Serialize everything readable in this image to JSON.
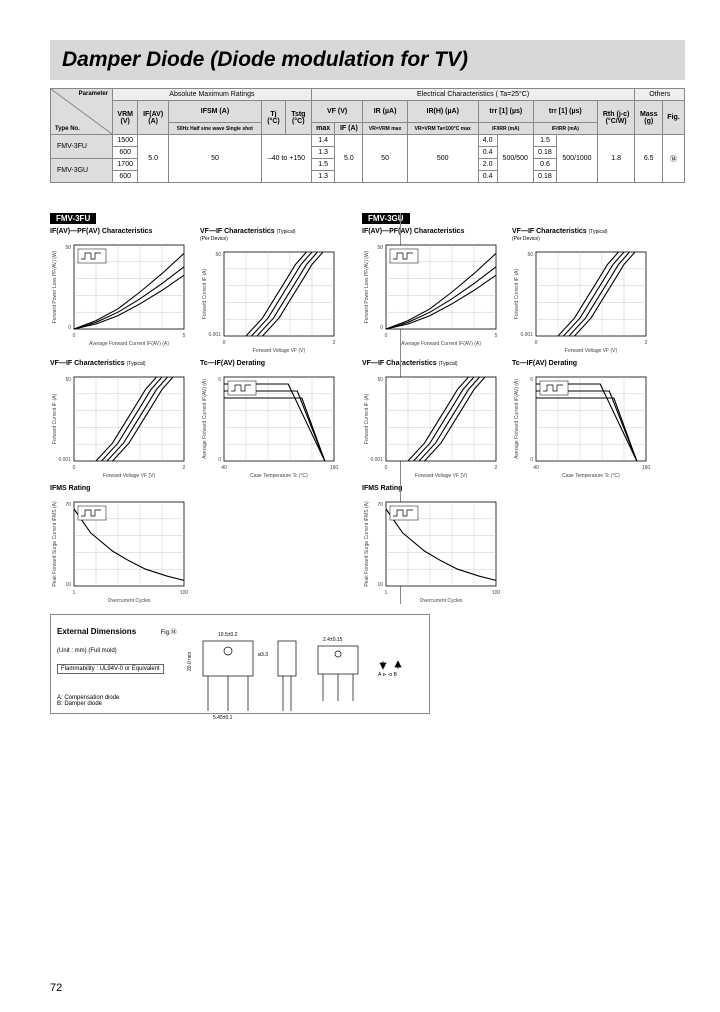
{
  "title": "Damper Diode (Diode modulation for TV)",
  "page_number": "72",
  "table": {
    "groups": [
      "Absolute Maximum Ratings",
      "Electrical Characteristics ( Ta=25°C)",
      "Others"
    ],
    "param_label": "Parameter",
    "type_label": "Type No.",
    "cols": [
      {
        "h1": "VRM",
        "h2": "(V)"
      },
      {
        "h1": "IF(AV)",
        "h2": "(A)"
      },
      {
        "h1": "IFSM\n(A)",
        "h2": "50Hz\nHalf sine wave\nSingle shot"
      },
      {
        "h1": "Tj",
        "h2": "(°C)"
      },
      {
        "h1": "Tstg",
        "h2": "(°C)"
      },
      {
        "h1": "VF\n(V)",
        "h2": "max",
        "h3": "IF\n(A)"
      },
      {
        "h1": "IR\n(µA)",
        "h2": "VR=VRM\nmax"
      },
      {
        "h1": "IR(H)\n(µA)",
        "h2": "VR=VRM\nTa=100°C max"
      },
      {
        "h1": "trr [1]\n(µs)",
        "h2": "IF/IRR\n(mA)"
      },
      {
        "h1": "trr [1]\n(µs)",
        "h2": "IF/IRR\n(mA)"
      },
      {
        "h1": "Rth (j-c)",
        "h2": "(°C/W)"
      },
      {
        "h1": "Mass",
        "h2": "(g)"
      },
      {
        "h1": "Fig."
      }
    ],
    "rows": [
      {
        "type": "FMV-3FU",
        "vrm": "1500",
        "vf": "1.4",
        "trr1": "4.0",
        "trr2": "1.5"
      },
      {
        "type": "",
        "vrm": "600",
        "vf": "1.3",
        "trr1": "0.4",
        "trr2": "0.18"
      },
      {
        "type": "FMV-3GU",
        "vrm": "1700",
        "vf": "1.5",
        "trr1": "2.0",
        "trr2": "0.6"
      },
      {
        "type": "",
        "vrm": "600",
        "vf": "1.3",
        "trr1": "0.4",
        "trr2": "0.18"
      }
    ],
    "shared": {
      "ifav": "5.0",
      "ifsm": "50",
      "tj_tstg": "–40 to +150",
      "if_a": "5.0",
      "ir": "50",
      "irh": "500",
      "ratio1": "500/500",
      "ratio2": "500/1000",
      "rth": "1.8",
      "mass": "6.5",
      "fig": "⑭"
    }
  },
  "sections": [
    {
      "label": "FMV-3FU"
    },
    {
      "label": "FMV-3GU"
    }
  ],
  "charts": {
    "titles": {
      "ifav_pfav": "IF(AV)—PF(AV) Characteristics",
      "vf_if": "VF—IF Characteristics",
      "vf_if_typ": "(Typical)",
      "tc_derating": "Tc—IF(AV) Derating",
      "ifms": "IFMS Rating",
      "per_device": "(Per Device)"
    },
    "axis": {
      "avg_fwd_current": "Average Forward Current IF(AV) (A)",
      "fwd_power_loss": "Forward Power Loss PF(AV) (W)",
      "fwd_voltage": "Forward Voltage VF (V)",
      "fwd_current": "Forward Current IF (A)",
      "case_temp": "Case Temperature Tc (°C)",
      "overcurrent": "Overcurrent Cycles",
      "peak_surge": "Peak Forward Surge Current IFMS (A)"
    },
    "annotations": {
      "dth": [
        "D/T=1/3",
        "D/T=1/5",
        "D/T=1/2"
      ],
      "temps": [
        "Tj=150°C",
        "100°C",
        "50°C",
        "25°C"
      ],
      "pulse": "Half sine wave 2ms",
      "not_exceed": "Not exceed the max ratings"
    },
    "colors": {
      "grid": "#bbbbbb",
      "axis": "#000000",
      "curve": "#000000",
      "bg": "#ffffff"
    },
    "data": {
      "ifav_pfav": {
        "xrange": [
          0,
          5
        ],
        "yrange": [
          0,
          50
        ],
        "curves": [
          [
            [
              0,
              0
            ],
            [
              1,
              5
            ],
            [
              2,
              12
            ],
            [
              3,
              22
            ],
            [
              4,
              33
            ],
            [
              5,
              45
            ]
          ],
          [
            [
              0,
              0
            ],
            [
              1,
              4
            ],
            [
              2,
              10
            ],
            [
              3,
              18
            ],
            [
              4,
              27
            ],
            [
              5,
              37
            ]
          ],
          [
            [
              0,
              0
            ],
            [
              1,
              3
            ],
            [
              2,
              8
            ],
            [
              3,
              15
            ],
            [
              4,
              23
            ],
            [
              5,
              32
            ]
          ]
        ]
      },
      "vf_if_log": {
        "xrange": [
          0,
          2.0
        ],
        "ylog": [
          0.001,
          50
        ],
        "curves": [
          [
            [
              0.4,
              0.001
            ],
            [
              0.7,
              0.01
            ],
            [
              0.9,
              0.1
            ],
            [
              1.1,
              1
            ],
            [
              1.3,
              10
            ],
            [
              1.5,
              50
            ]
          ],
          [
            [
              0.5,
              0.001
            ],
            [
              0.8,
              0.01
            ],
            [
              1.0,
              0.1
            ],
            [
              1.2,
              1
            ],
            [
              1.4,
              10
            ],
            [
              1.6,
              50
            ]
          ],
          [
            [
              0.6,
              0.001
            ],
            [
              0.9,
              0.01
            ],
            [
              1.1,
              0.1
            ],
            [
              1.3,
              1
            ],
            [
              1.5,
              10
            ],
            [
              1.7,
              50
            ]
          ],
          [
            [
              0.7,
              0.001
            ],
            [
              1.0,
              0.01
            ],
            [
              1.2,
              0.1
            ],
            [
              1.4,
              1
            ],
            [
              1.6,
              10
            ],
            [
              1.8,
              50
            ]
          ]
        ]
      },
      "derating": {
        "xrange": [
          40,
          160
        ],
        "yrange": [
          0,
          6
        ],
        "curves": [
          [
            [
              40,
              5.5
            ],
            [
              110,
              5.5
            ],
            [
              150,
              0
            ]
          ],
          [
            [
              40,
              5.0
            ],
            [
              120,
              5.0
            ],
            [
              150,
              0
            ]
          ],
          [
            [
              40,
              4.5
            ],
            [
              125,
              4.5
            ],
            [
              150,
              0
            ]
          ]
        ]
      },
      "ifms": {
        "xlog": [
          1,
          100
        ],
        "yrange": [
          10,
          70
        ],
        "curve": [
          [
            1,
            65
          ],
          [
            2,
            48
          ],
          [
            5,
            35
          ],
          [
            10,
            28
          ],
          [
            20,
            22
          ],
          [
            50,
            17
          ],
          [
            100,
            14
          ]
        ]
      }
    }
  },
  "ext_dim": {
    "header": "External Dimensions",
    "sub": "(Unit : mm) (Full mold)",
    "fig": "Fig.⑭",
    "flam": "Flammability :\nUL94V-0 or Equivalent",
    "note_a": "A: Compensation diode",
    "note_b": "B: Damper diode",
    "dims": [
      "10.5±0.2",
      "0.3±0.1",
      "2.4±0.15",
      "3.4±0.15",
      "3.4±0.15",
      "20.0 min",
      "3.6",
      "5.3",
      "1.5",
      "18.2",
      "3.0",
      "1.0±0.1",
      "3.8",
      "9.3",
      "0.7±0.1",
      "5.45±0.1",
      "5.45±0.1",
      "3.35"
    ]
  }
}
